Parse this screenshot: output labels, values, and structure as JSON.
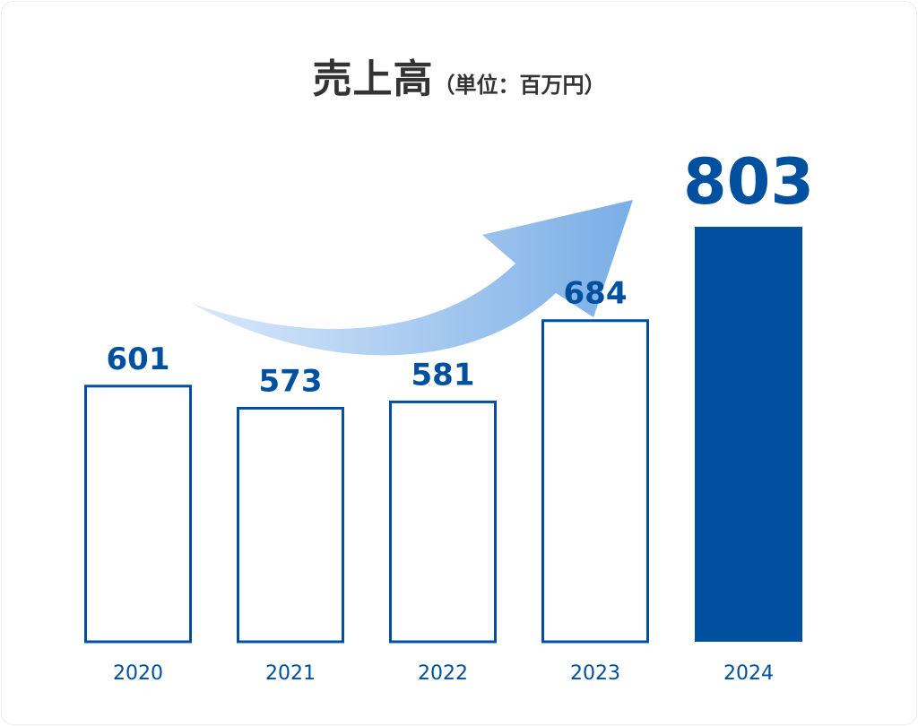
{
  "chart_data": {
    "type": "bar",
    "title": "売上高",
    "subtitle": "（単位：百万円）",
    "categories": [
      "2020",
      "2021",
      "2022",
      "2023",
      "2024"
    ],
    "values": [
      601,
      573,
      581,
      684,
      803
    ],
    "data_labels": [
      "601",
      "573",
      "581",
      "684",
      "803"
    ],
    "highlight_index": 4,
    "ylim": [
      277,
      830
    ],
    "grid": false,
    "legend": "none",
    "colors": {
      "bar": "#0050a0",
      "title": "#333333",
      "arrow_start": "#dbe9fa",
      "arrow_end": "#7aaee6"
    },
    "annotations": [
      {
        "type": "upward-arrow",
        "icon": "trend-arrow-icon"
      }
    ]
  }
}
